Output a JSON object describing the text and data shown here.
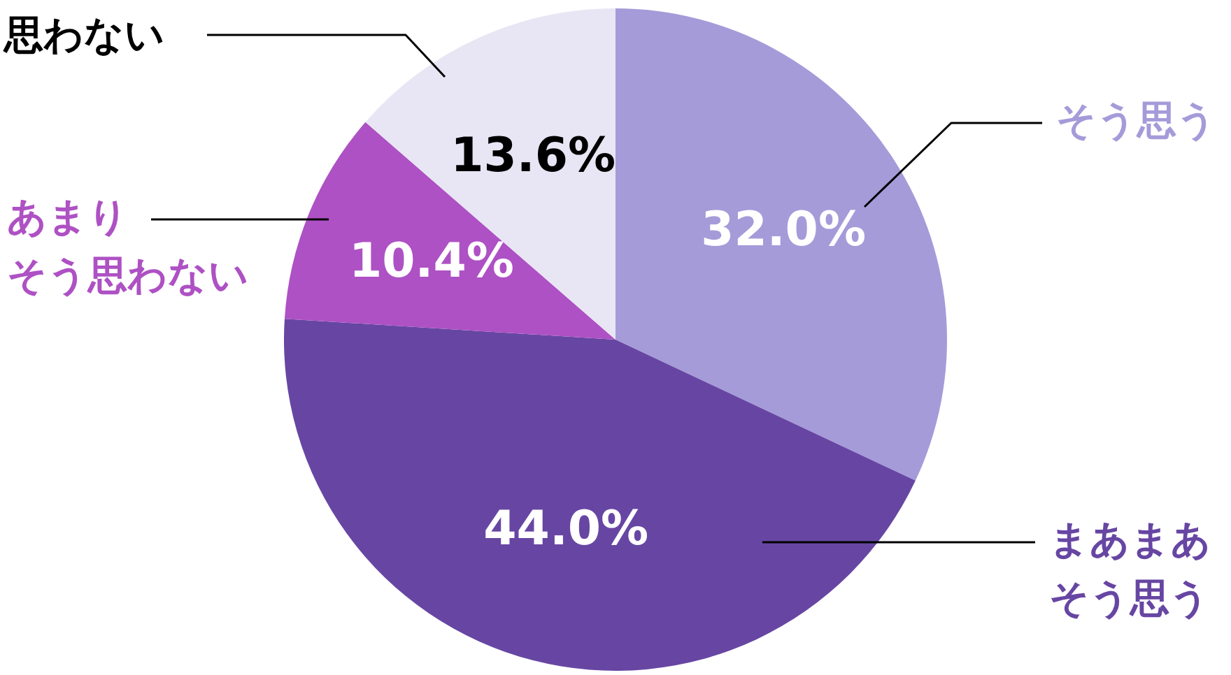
{
  "chart_data": {
    "type": "pie",
    "categories": [
      "そう思う",
      "まあまあそう思う",
      "あまりそう思わない",
      "思わない"
    ],
    "values": [
      32.0,
      44.0,
      10.4,
      13.6
    ],
    "value_labels": [
      "32.0%",
      "44.0%",
      "10.4%",
      "13.6%"
    ],
    "colors": [
      "#a59bd9",
      "#6746a3",
      "#ae51c4",
      "#e8e6f4"
    ],
    "legend": false
  }
}
